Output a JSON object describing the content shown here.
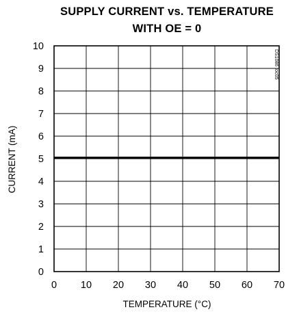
{
  "chart_data": {
    "type": "line",
    "title": "SUPPLY CURRENT vs. TEMPERATURE",
    "subtitle": "WITH OE = 0",
    "xlabel": "TEMPERATURE (°C)",
    "ylabel": "CURRENT (mA)",
    "xlim": [
      0,
      70
    ],
    "ylim": [
      0,
      10
    ],
    "x_ticks": [
      "0",
      "10",
      "20",
      "30",
      "40",
      "50",
      "60",
      "70"
    ],
    "y_ticks": [
      "0",
      "1",
      "2",
      "3",
      "4",
      "5",
      "6",
      "7",
      "8",
      "9",
      "10"
    ],
    "grid": true,
    "figure_code": "DS1086 toc05",
    "series": [
      {
        "x": [
          0,
          70
        ],
        "values": [
          5.05,
          5.05
        ]
      }
    ]
  }
}
